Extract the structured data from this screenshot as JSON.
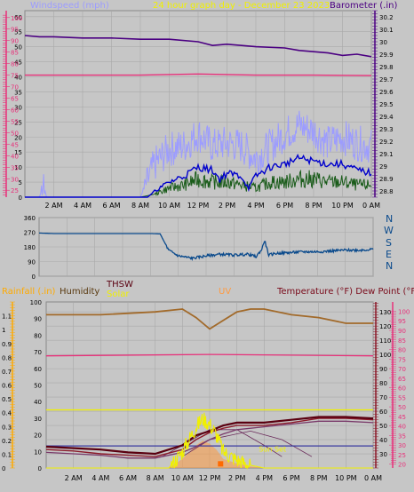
{
  "colors": {
    "panel_bg": "#c6c6c6",
    "plot_bg": "#c6c6c6",
    "grid": "#a9a9a9",
    "wind_speed": "#9c9cff",
    "wind_avg": "#0000cc",
    "wind_gust": "#1a5c1a",
    "wind_dir": "#0a4a8c",
    "barometer": "#4b0082",
    "magenta": "#e8307a",
    "humidity": "#a26a2a",
    "thsw": "#5a0010",
    "solar": "#f0f000",
    "uv": "#ff9a40",
    "temp": "#8b1a2a",
    "dew": "#7a3a6a",
    "rain_axis": "#ffaa00",
    "temp_axis": "#e8307a"
  },
  "header": {
    "wind_label": "Windspeed (mph)",
    "date_label": "24 hour graph day - December 23 2023",
    "baro_label": "Barometer (.in)"
  },
  "middle": {
    "compass": [
      "N",
      "W",
      "S",
      "E",
      "N"
    ]
  },
  "bottom_header": {
    "rain_label": "Rainfall (.in)",
    "humidity_label": "Humidity",
    "thsw_label": "THSW",
    "solar_label": "Solar",
    "uv_label": "UV",
    "temp_label": "Temperature (°F) Dew Point (°F)"
  },
  "annotations": {
    "sun_set": "Sun Set"
  },
  "chart_data": [
    {
      "id": "wind_baro",
      "type": "line",
      "title": "24 hour graph day - December 23 2023",
      "x_ticks": [
        "2 AM",
        "4 AM",
        "6 AM",
        "8 AM",
        "10 AM",
        "12 PM",
        "2 PM",
        "4 PM",
        "6 PM",
        "8 PM",
        "10 PM",
        "0 AM"
      ],
      "x_range_hours": [
        0,
        24
      ],
      "left_axis": {
        "label": "Windspeed (mph)",
        "range": [
          0,
          62
        ],
        "ticks": [
          0,
          5,
          10,
          15,
          20,
          25,
          30,
          35,
          40,
          45,
          50,
          55,
          60
        ]
      },
      "outer_left_axis": {
        "ticks": [
          25,
          30,
          35,
          40,
          45,
          50,
          55,
          60,
          65,
          70,
          75,
          80,
          85,
          90,
          95,
          100
        ]
      },
      "right_axis": {
        "label": "Barometer (.in)",
        "range": [
          28.75,
          30.25
        ],
        "ticks": [
          28.8,
          28.9,
          29,
          29.1,
          29.2,
          29.3,
          29.4,
          29.5,
          29.6,
          29.7,
          29.8,
          29.9,
          30,
          30.1,
          30.2
        ]
      },
      "series": [
        {
          "id": "barometer",
          "axis": "right",
          "x": [
            0,
            1,
            2,
            4,
            6,
            8,
            10,
            12,
            13,
            14,
            16,
            18,
            19,
            20,
            21,
            22,
            23,
            24
          ],
          "values": [
            30.05,
            30.04,
            30.04,
            30.03,
            30.03,
            30.02,
            30.02,
            30.0,
            29.97,
            29.98,
            29.96,
            29.95,
            29.93,
            29.92,
            29.91,
            29.89,
            29.9,
            29.88
          ]
        },
        {
          "id": "outer_level",
          "axis": "outer_left",
          "x": [
            0,
            4,
            8,
            12,
            16,
            20,
            24
          ],
          "values": [
            75,
            75,
            75,
            75.5,
            75,
            75,
            74.8
          ]
        },
        {
          "id": "wind_avg",
          "axis": "left",
          "x": [
            0,
            8,
            8.5,
            9,
            10,
            11,
            12,
            13,
            13.5,
            14,
            15,
            15.5,
            16,
            17,
            18,
            19,
            20,
            21,
            22,
            23,
            24
          ],
          "values": [
            0,
            0,
            0,
            2,
            5,
            7,
            10,
            9,
            6,
            8,
            7,
            3,
            7,
            10,
            11,
            13,
            12,
            11,
            11,
            9,
            8
          ]
        },
        {
          "id": "wind_gust",
          "axis": "left",
          "x": [
            0,
            8,
            9,
            10,
            11,
            12,
            13,
            14,
            15,
            16,
            17,
            18,
            19,
            20,
            21,
            22,
            23,
            24
          ],
          "values": [
            0,
            0,
            1,
            3,
            4,
            6,
            5,
            5,
            4,
            3,
            5,
            5,
            6,
            6,
            5,
            5,
            4,
            4
          ]
        },
        {
          "id": "wind_speed",
          "axis": "left",
          "x": [
            0,
            1,
            1.3,
            1.5,
            8,
            9,
            10,
            11,
            12,
            13,
            14,
            15,
            16,
            17,
            18,
            19,
            20,
            21,
            22,
            23,
            24
          ],
          "values": [
            0,
            0,
            4,
            0,
            0,
            11,
            16,
            17,
            21,
            17,
            18,
            17,
            13,
            17,
            21,
            24,
            22,
            18,
            20,
            18,
            17
          ]
        }
      ]
    },
    {
      "id": "wind_dir",
      "type": "line",
      "x_ticks": [
        "2 AM",
        "4 AM",
        "6 AM",
        "8 AM",
        "10 AM",
        "12 PM",
        "2 PM",
        "4 PM",
        "6 PM",
        "8 PM",
        "10 PM",
        "0 AM"
      ],
      "left_axis": {
        "range": [
          0,
          360
        ],
        "ticks": [
          0,
          90,
          180,
          270,
          360
        ]
      },
      "series": [
        {
          "id": "direction",
          "x": [
            0,
            1,
            4,
            8,
            8.7,
            9.3,
            10,
            11,
            12,
            13,
            14,
            15,
            15.6,
            16,
            16.2,
            16.5,
            17,
            18,
            19,
            20,
            21,
            22,
            23,
            24
          ],
          "values": [
            265,
            262,
            262,
            262,
            260,
            160,
            125,
            110,
            125,
            135,
            130,
            135,
            120,
            165,
            220,
            130,
            140,
            145,
            150,
            150,
            155,
            160,
            160,
            165
          ]
        }
      ]
    },
    {
      "id": "rain_temp",
      "type": "line",
      "x_ticks": [
        "2 AM",
        "4 AM",
        "6 AM",
        "8 AM",
        "10 AM",
        "12 PM",
        "2 PM",
        "4 PM",
        "6 PM",
        "8 PM",
        "10 PM",
        "0 AM"
      ],
      "rain_axis": {
        "label": "Rainfall (.in)",
        "range": [
          0,
          1.2
        ],
        "ticks": [
          0,
          0.1,
          0.2,
          0.3,
          0.4,
          0.5,
          0.6,
          0.7,
          0.8,
          0.9,
          1,
          1.1
        ]
      },
      "humidity_axis": {
        "label": "Humidity",
        "ticks": [
          0,
          10,
          20,
          30,
          40,
          50,
          60,
          70,
          80,
          90,
          100
        ]
      },
      "temp_axis": {
        "label": "Temperature (°F) Dew Point (°F)",
        "range": [
          20,
          137
        ],
        "ticks": [
          30,
          40,
          50,
          60,
          70,
          80,
          90,
          100,
          110,
          120,
          130
        ]
      },
      "outer_right_axis": {
        "ticks": [
          20,
          25,
          30,
          35,
          40,
          45,
          50,
          55,
          60,
          65,
          70,
          75,
          80,
          85,
          90,
          95,
          100
        ]
      },
      "series": [
        {
          "id": "humidity",
          "axis": "temp",
          "x": [
            0,
            4,
            8,
            10,
            11,
            12,
            13,
            14,
            15,
            16,
            17,
            18,
            20,
            22,
            24
          ],
          "values": [
            128,
            128,
            130,
            132,
            126,
            118,
            124,
            130,
            132,
            132,
            130,
            128,
            126,
            122,
            122
          ]
        },
        {
          "id": "outer_level",
          "axis": "temp",
          "x": [
            0,
            12,
            24
          ],
          "values": [
            99,
            100,
            99
          ]
        },
        {
          "id": "solar_ref",
          "axis": "temp",
          "x": [
            0,
            24
          ],
          "values": [
            61,
            61
          ]
        },
        {
          "id": "thsw",
          "axis": "temp",
          "x": [
            0,
            2,
            4,
            6,
            8,
            10,
            11,
            12,
            13,
            14,
            16,
            18,
            20,
            22,
            24
          ],
          "values": [
            35,
            34,
            33,
            31,
            30,
            36,
            43,
            46,
            50,
            52,
            52,
            54,
            56,
            56,
            55
          ]
        },
        {
          "id": "temperature",
          "axis": "temp",
          "x": [
            0,
            2,
            4,
            6,
            8,
            10,
            11,
            12,
            13,
            14,
            16,
            18,
            20,
            22,
            24
          ],
          "values": [
            33,
            32,
            30,
            29,
            28,
            33,
            40,
            45,
            48,
            50,
            50,
            52,
            55,
            55,
            54
          ]
        },
        {
          "id": "dew_point",
          "axis": "temp",
          "x": [
            0,
            2,
            4,
            6,
            8,
            10,
            11,
            12,
            13,
            14,
            16,
            18,
            20,
            22,
            24
          ],
          "values": [
            31,
            30,
            29,
            27,
            27,
            31,
            35,
            40,
            44,
            47,
            49,
            51,
            53,
            53,
            52
          ]
        },
        {
          "id": "solar",
          "axis": "rain",
          "x": [
            0,
            9,
            10,
            11,
            11.5,
            12,
            12.5,
            13,
            14,
            15,
            16,
            17,
            24
          ],
          "values": [
            0,
            0,
            0.12,
            0.3,
            0.36,
            0.32,
            0.24,
            0.12,
            0.06,
            0.02,
            0,
            0,
            0
          ]
        },
        {
          "id": "rain_line",
          "axis": "rain",
          "x": [
            0,
            24
          ],
          "values": [
            0.16,
            0.16
          ]
        }
      ]
    }
  ]
}
